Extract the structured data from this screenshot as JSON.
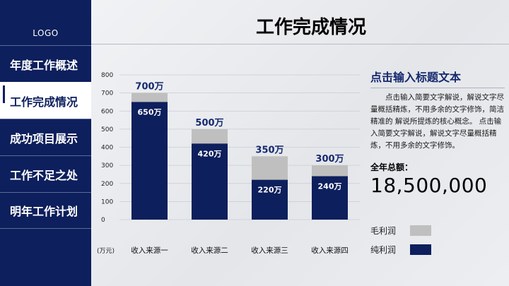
{
  "sidebar": {
    "logo": "LOGO",
    "items": [
      {
        "label": "年度工作概述"
      },
      {
        "label": "工作完成情况"
      },
      {
        "label": "成功项目展示"
      },
      {
        "label": "工作不足之处"
      },
      {
        "label": "明年工作计划"
      }
    ],
    "active_index": 1
  },
  "page": {
    "title": "工作完成情况"
  },
  "side": {
    "title": "点击输入标题文本",
    "description": "点击输入简要文字解说，解说文字尽量概括精炼，不用多余的文字修饰，简洁精准的 解说所提炼的核心概念。 点击输入简要文字解说，解说文字尽量概括精炼，不用多余的文字修饰。",
    "total_label": "全年总额：",
    "total_value": "18,500,000"
  },
  "colors": {
    "sidebar_bg": "#0d1f5c",
    "net": "#0d1f5c",
    "gross": "#bfbfbf",
    "accent_text": "#15296e"
  },
  "chart_data": {
    "type": "bar",
    "categories": [
      "收入来源一",
      "收入来源二",
      "收入来源三",
      "收入来源四"
    ],
    "series": [
      {
        "name": "毛利润",
        "values": [
          700,
          500,
          350,
          300
        ],
        "labels": [
          "700万",
          "500万",
          "350万",
          "300万"
        ]
      },
      {
        "name": "纯利润",
        "values": [
          650,
          420,
          220,
          240
        ],
        "labels": [
          "650万",
          "420万",
          "220万",
          "240万"
        ]
      }
    ],
    "y_ticks": [
      0,
      100,
      200,
      300,
      400,
      500,
      600,
      700,
      800
    ],
    "ylim": [
      0,
      800
    ],
    "unit_label": "(万元)",
    "grid": true,
    "overlapping": true,
    "legend_placement": "bottom-right"
  }
}
